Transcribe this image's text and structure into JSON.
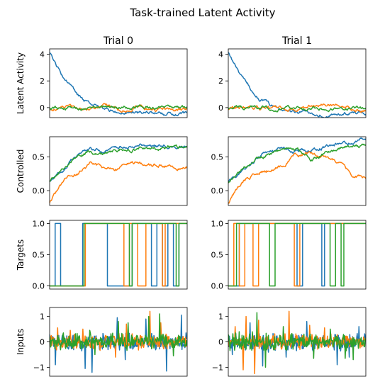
{
  "figure": {
    "title": "Task-trained Latent Activity",
    "col_titles": [
      "Trial 0",
      "Trial 1"
    ]
  },
  "colors": {
    "series": [
      "#1f77b4",
      "#ff7f0e",
      "#2ca02c"
    ],
    "axes": "#000000",
    "background": "#ffffff"
  },
  "chart_data": [
    {
      "id": "latent-activity",
      "type": "line",
      "ylabel": "Latent Activity",
      "ylim": [
        -0.75,
        4.4
      ],
      "yticks": [
        0,
        2,
        4
      ],
      "ytick_labels": [
        "0",
        "2",
        "4"
      ],
      "x": [
        0,
        10,
        20,
        30,
        40,
        50,
        60,
        70,
        80,
        90,
        100
      ],
      "trials": [
        {
          "title": "Trial 0",
          "series": [
            {
              "values": [
                4.1,
                2.2,
                0.95,
                0.2,
                -0.2,
                -0.3,
                -0.4,
                -0.45,
                -0.45,
                -0.5,
                -0.55
              ]
            },
            {
              "values": [
                -0.15,
                0.0,
                -0.1,
                0.05,
                0.3,
                -0.2,
                -0.05,
                -0.1,
                -0.15,
                -0.1,
                -0.05
              ]
            },
            {
              "values": [
                -0.15,
                0.0,
                0.05,
                0.0,
                -0.05,
                0.0,
                0.05,
                0.0,
                0.0,
                -0.05,
                0.0
              ]
            }
          ]
        },
        {
          "title": "Trial 1",
          "series": [
            {
              "values": [
                4.1,
                2.2,
                0.9,
                0.15,
                -0.2,
                -0.3,
                -0.4,
                -0.5,
                -0.5,
                -0.4,
                -0.35
              ]
            },
            {
              "values": [
                -0.15,
                0.05,
                0.0,
                -0.05,
                -0.1,
                -0.15,
                0.15,
                0.3,
                0.2,
                -0.05,
                -0.2
              ]
            },
            {
              "values": [
                -0.15,
                0.0,
                0.05,
                0.0,
                -0.05,
                -0.05,
                -0.1,
                -0.1,
                -0.05,
                -0.1,
                -0.1
              ]
            }
          ]
        }
      ]
    },
    {
      "id": "controlled",
      "type": "line",
      "ylabel": "Controlled",
      "ylim": [
        -0.22,
        0.8
      ],
      "yticks": [
        0,
        0.5
      ],
      "ytick_labels": [
        "0.0",
        "0.5"
      ],
      "x": [
        0,
        10,
        20,
        30,
        40,
        50,
        60,
        70,
        80,
        90,
        100
      ],
      "trials": [
        {
          "title": "Trial 0",
          "series": [
            {
              "values": [
                0.15,
                0.3,
                0.55,
                0.62,
                0.58,
                0.65,
                0.68,
                0.7,
                0.65,
                0.68,
                0.65
              ]
            },
            {
              "values": [
                -0.17,
                0.15,
                0.25,
                0.4,
                0.32,
                0.32,
                0.45,
                0.38,
                0.38,
                0.35,
                0.33
              ]
            },
            {
              "values": [
                0.15,
                0.32,
                0.52,
                0.58,
                0.55,
                0.62,
                0.62,
                0.65,
                0.62,
                0.65,
                0.63
              ]
            }
          ]
        },
        {
          "title": "Trial 1",
          "series": [
            {
              "values": [
                0.15,
                0.28,
                0.45,
                0.6,
                0.62,
                0.58,
                0.62,
                0.65,
                0.7,
                0.72,
                0.75
              ]
            },
            {
              "values": [
                -0.17,
                0.12,
                0.25,
                0.32,
                0.35,
                0.52,
                0.55,
                0.5,
                0.42,
                0.25,
                0.2
              ]
            },
            {
              "values": [
                0.13,
                0.3,
                0.48,
                0.55,
                0.6,
                0.62,
                0.45,
                0.55,
                0.62,
                0.65,
                0.68
              ]
            }
          ]
        }
      ]
    },
    {
      "id": "targets",
      "type": "line",
      "ylabel": "Targets",
      "ylim": [
        -0.05,
        1.05
      ],
      "yticks": [
        0,
        0.5,
        1
      ],
      "ytick_labels": [
        "0.0",
        "0.5",
        "1.0"
      ],
      "x_range": [
        0,
        100
      ],
      "trials": [
        {
          "title": "Trial 0",
          "series": [
            {
              "transitions": [
                [
                  0,
                  0
                ],
                [
                  4,
                  1
                ],
                [
                  8,
                  0
                ],
                [
                  24,
                  1
                ],
                [
                  42,
                  0
                ],
                [
                  60,
                  1
                ],
                [
                  74,
                  0
                ],
                [
                  78,
                  1
                ],
                [
                  82,
                  0
                ],
                [
                  86,
                  1
                ],
                [
                  90,
                  0
                ],
                [
                  94,
                  1
                ],
                [
                  100,
                  1
                ]
              ]
            },
            {
              "transitions": [
                [
                  0,
                  0
                ],
                [
                  26,
                  1
                ],
                [
                  54,
                  0
                ],
                [
                  58,
                  1
                ],
                [
                  64,
                  0
                ],
                [
                  70,
                  1
                ],
                [
                  82,
                  0
                ],
                [
                  84,
                  1
                ],
                [
                  100,
                  1
                ]
              ]
            },
            {
              "transitions": [
                [
                  0,
                  0
                ],
                [
                  25,
                  1
                ],
                [
                  58,
                  0
                ],
                [
                  60,
                  1
                ],
                [
                  92,
                  0
                ],
                [
                  94,
                  1
                ],
                [
                  100,
                  1
                ]
              ]
            }
          ]
        },
        {
          "title": "Trial 1",
          "series": [
            {
              "transitions": [
                [
                  0,
                  0
                ],
                [
                  8,
                  1
                ],
                [
                  50,
                  0
                ],
                [
                  54,
                  1
                ],
                [
                  68,
                  0
                ],
                [
                  70,
                  1
                ],
                [
                  100,
                  1
                ]
              ]
            },
            {
              "transitions": [
                [
                  0,
                  0
                ],
                [
                  4,
                  1
                ],
                [
                  8,
                  0
                ],
                [
                  12,
                  1
                ],
                [
                  18,
                  0
                ],
                [
                  22,
                  1
                ],
                [
                  48,
                  0
                ],
                [
                  52,
                  1
                ],
                [
                  100,
                  1
                ]
              ]
            },
            {
              "transitions": [
                [
                  0,
                  0
                ],
                [
                  6,
                  1
                ],
                [
                  30,
                  0
                ],
                [
                  34,
                  1
                ],
                [
                  74,
                  0
                ],
                [
                  78,
                  1
                ],
                [
                  82,
                  0
                ],
                [
                  84,
                  1
                ],
                [
                  100,
                  1
                ]
              ]
            }
          ]
        }
      ]
    },
    {
      "id": "inputs",
      "type": "line",
      "ylabel": "Inputs",
      "ylim": [
        -1.35,
        1.35
      ],
      "yticks": [
        -1,
        0,
        1
      ],
      "ytick_labels": [
        "−1",
        "0",
        "1"
      ],
      "x_range": [
        0,
        100
      ],
      "trials": [
        {
          "title": "Trial 0",
          "series": [
            {
              "noise_std": 0.18,
              "spikes": [
                [
                  4,
                  -0.9
                ],
                [
                  26,
                  -1.05
                ],
                [
                  31,
                  -1.2
                ],
                [
                  49,
                  0.95
                ],
                [
                  55,
                  -0.7
                ],
                [
                  70,
                  0.9
                ],
                [
                  85,
                  -1.15
                ],
                [
                  96,
                  1.05
                ]
              ]
            },
            {
              "noise_std": 0.18,
              "spikes": [
                [
                  6,
                  0.55
                ],
                [
                  15,
                  0.45
                ],
                [
                  24,
                  0.5
                ],
                [
                  48,
                  -0.6
                ],
                [
                  56,
                  0.7
                ],
                [
                  73,
                  1.2
                ],
                [
                  81,
                  0.75
                ]
              ]
            },
            {
              "noise_std": 0.18,
              "spikes": [
                [
                  10,
                  0.35
                ],
                [
                  29,
                  0.45
                ],
                [
                  33,
                  -0.5
                ],
                [
                  50,
                  0.8
                ],
                [
                  57,
                  0.75
                ],
                [
                  72,
                  1.0
                ],
                [
                  80,
                  1.1
                ],
                [
                  90,
                  -0.55
                ]
              ]
            }
          ]
        },
        {
          "title": "Trial 1",
          "series": [
            {
              "noise_std": 0.18,
              "spikes": [
                [
                  3,
                  -0.5
                ],
                [
                  16,
                  0.75
                ],
                [
                  25,
                  -0.95
                ],
                [
                  42,
                  -0.6
                ],
                [
                  57,
                  0.8
                ],
                [
                  79,
                  -0.9
                ],
                [
                  88,
                  -0.6
                ],
                [
                  95,
                  0.6
                ]
              ]
            },
            {
              "noise_std": 0.18,
              "spikes": [
                [
                  5,
                  0.6
                ],
                [
                  11,
                  -1.1
                ],
                [
                  13,
                  1.0
                ],
                [
                  19,
                  -1.25
                ],
                [
                  22,
                  0.85
                ],
                [
                  44,
                  1.2
                ],
                [
                  59,
                  0.65
                ],
                [
                  70,
                  0.55
                ]
              ]
            },
            {
              "noise_std": 0.18,
              "spikes": [
                [
                  8,
                  0.4
                ],
                [
                  21,
                  1.15
                ],
                [
                  27,
                  -1.0
                ],
                [
                  40,
                  0.6
                ],
                [
                  62,
                  -0.65
                ],
                [
                  74,
                  0.5
                ],
                [
                  85,
                  -0.65
                ],
                [
                  91,
                  -0.7
                ]
              ]
            }
          ]
        }
      ]
    }
  ]
}
